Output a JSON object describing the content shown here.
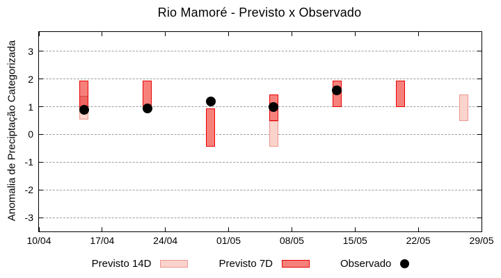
{
  "title": "Rio Mamoré - Previsto x Observado",
  "chart_data": {
    "type": "bar",
    "title": "Rio Mamoré - Previsto x Observado",
    "xlabel": "",
    "ylabel": "Anomalia de Preciptação Categorizada",
    "x_tick_labels": [
      "10/04",
      "17/04",
      "24/04",
      "01/05",
      "08/05",
      "15/05",
      "22/05",
      "29/05"
    ],
    "x_tick_days": [
      0,
      7,
      14,
      21,
      28,
      35,
      42,
      49
    ],
    "x_range_days": [
      0,
      49
    ],
    "y_ticks": [
      -3,
      -2,
      -1,
      0,
      1,
      2,
      3
    ],
    "ylim": [
      -3.5,
      3.7
    ],
    "grid": "horizontal-dashed-gray",
    "legend_position": "below",
    "bar_width_days": 1,
    "overlap_fill": "#ef6660",
    "overlap_divider": "#d8453f",
    "series": [
      {
        "name": "Previsto 14D",
        "type": "range-bar",
        "fill": "#fad3cc",
        "border": "#e8968c",
        "points": [
          {
            "date": "15/04",
            "day": 5,
            "low": 0.55,
            "high": 1.4
          },
          {
            "date": "06/05",
            "day": 26,
            "low": -0.45,
            "high": 0.5
          },
          {
            "date": "27/05",
            "day": 47,
            "low": 0.5,
            "high": 1.45
          }
        ]
      },
      {
        "name": "Previsto 7D",
        "type": "range-bar",
        "fill": "#f6817b",
        "border": "#e60000",
        "points": [
          {
            "date": "15/04",
            "day": 5,
            "low": 0.9,
            "high": 1.95
          },
          {
            "date": "22/04",
            "day": 12,
            "low": 1.0,
            "high": 1.95
          },
          {
            "date": "29/04",
            "day": 19,
            "low": -0.45,
            "high": 0.95
          },
          {
            "date": "06/05",
            "day": 26,
            "low": 0.5,
            "high": 1.45
          },
          {
            "date": "13/05",
            "day": 33,
            "low": 1.0,
            "high": 1.95
          },
          {
            "date": "20/05",
            "day": 40,
            "low": 1.0,
            "high": 1.95
          }
        ]
      },
      {
        "name": "Observado",
        "type": "scatter",
        "fill": "#000000",
        "points": [
          {
            "date": "15/04",
            "day": 5,
            "value": 0.9
          },
          {
            "date": "22/04",
            "day": 12,
            "value": 0.95
          },
          {
            "date": "29/04",
            "day": 19,
            "value": 1.2
          },
          {
            "date": "06/05",
            "day": 26,
            "value": 1.0
          },
          {
            "date": "13/05",
            "day": 33,
            "value": 1.6
          }
        ]
      }
    ]
  }
}
